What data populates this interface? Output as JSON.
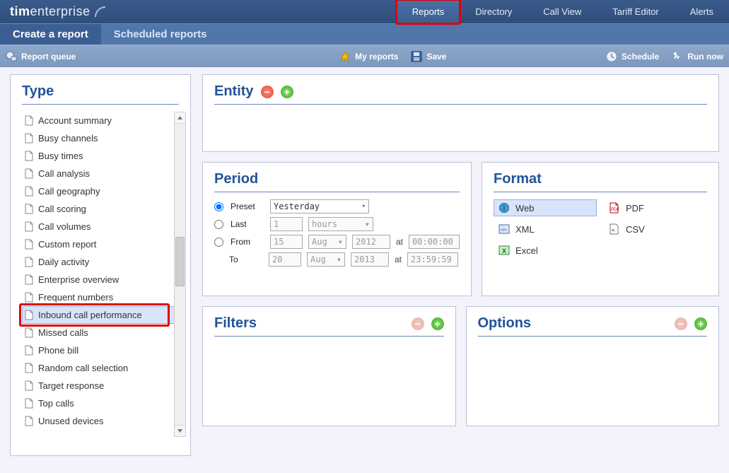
{
  "brand": {
    "part1": "tim",
    "part2": "enterprise"
  },
  "mainnav": {
    "items": [
      {
        "label": "Reports",
        "active": true,
        "highlighted": true
      },
      {
        "label": "Directory"
      },
      {
        "label": "Call View"
      },
      {
        "label": "Tariff Editor"
      },
      {
        "label": "Alerts"
      }
    ]
  },
  "subnav": {
    "items": [
      {
        "label": "Create a report",
        "active": true
      },
      {
        "label": "Scheduled reports"
      }
    ]
  },
  "toolbar": {
    "report_queue": "Report queue",
    "my_reports": "My reports",
    "save": "Save",
    "schedule": "Schedule",
    "run_now": "Run now"
  },
  "type": {
    "heading": "Type",
    "items": [
      "Account summary",
      "Busy channels",
      "Busy times",
      "Call analysis",
      "Call geography",
      "Call scoring",
      "Call volumes",
      "Custom report",
      "Daily activity",
      "Enterprise overview",
      "Frequent numbers",
      "Inbound call performance",
      "Missed calls",
      "Phone bill",
      "Random call selection",
      "Target response",
      "Top calls",
      "Unused devices"
    ],
    "selected_index": 11,
    "highlighted_index": 11
  },
  "entity": {
    "heading": "Entity"
  },
  "period": {
    "heading": "Period",
    "preset_label": "Preset",
    "preset_value": "Yesterday",
    "last_label": "Last",
    "last_qty": "1",
    "last_unit": "hours",
    "from_label": "From",
    "to_label": "To",
    "at_label": "at",
    "from_day": "15",
    "from_month": "Aug",
    "from_year": "2012",
    "from_time": "00:00:00",
    "to_day": "20",
    "to_month": "Aug",
    "to_year": "2013",
    "to_time": "23:59:59",
    "selected": "preset"
  },
  "format": {
    "heading": "Format",
    "items": [
      {
        "key": "web",
        "label": "Web",
        "selected": true
      },
      {
        "key": "pdf",
        "label": "PDF"
      },
      {
        "key": "xml",
        "label": "XML"
      },
      {
        "key": "csv",
        "label": "CSV"
      },
      {
        "key": "excel",
        "label": "Excel"
      }
    ]
  },
  "filters": {
    "heading": "Filters"
  },
  "options": {
    "heading": "Options"
  },
  "colors": {
    "header_top": "#3a5a8a",
    "header_bottom": "#2f4e7c",
    "subnav": "#5176aa",
    "toolbar_top": "#8ea8ca",
    "toolbar_bottom": "#7c98be",
    "panel_border": "#b9c4d8",
    "heading_text": "#22539a",
    "selection_bg": "#d7e4fb",
    "selection_border": "#9cb1de",
    "highlight_border": "#e00000"
  }
}
